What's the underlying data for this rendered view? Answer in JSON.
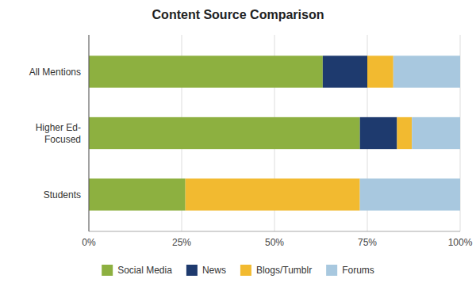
{
  "chart_data": {
    "type": "bar",
    "orientation": "horizontal",
    "stacked": true,
    "title": "Content Source Comparison",
    "categories": [
      "All Mentions",
      "Higher Ed-\nFocused",
      "Students"
    ],
    "series": [
      {
        "name": "Social Media",
        "color": "#8db040",
        "values": [
          63,
          73,
          26
        ]
      },
      {
        "name": "News",
        "color": "#1e3a6e",
        "values": [
          12,
          10,
          0
        ]
      },
      {
        "name": "Blogs/Tumblr",
        "color": "#f2ba30",
        "values": [
          7,
          4,
          47
        ]
      },
      {
        "name": "Forums",
        "color": "#a8c8df",
        "values": [
          18,
          13,
          27
        ]
      }
    ],
    "xlim": [
      0,
      100
    ],
    "xticks": [
      {
        "value": 0,
        "label": "0%"
      },
      {
        "value": 25,
        "label": "25%"
      },
      {
        "value": 50,
        "label": "50%"
      },
      {
        "value": 75,
        "label": "75%"
      },
      {
        "value": 100,
        "label": "100%"
      }
    ],
    "grid": true,
    "legend": "bottom"
  }
}
